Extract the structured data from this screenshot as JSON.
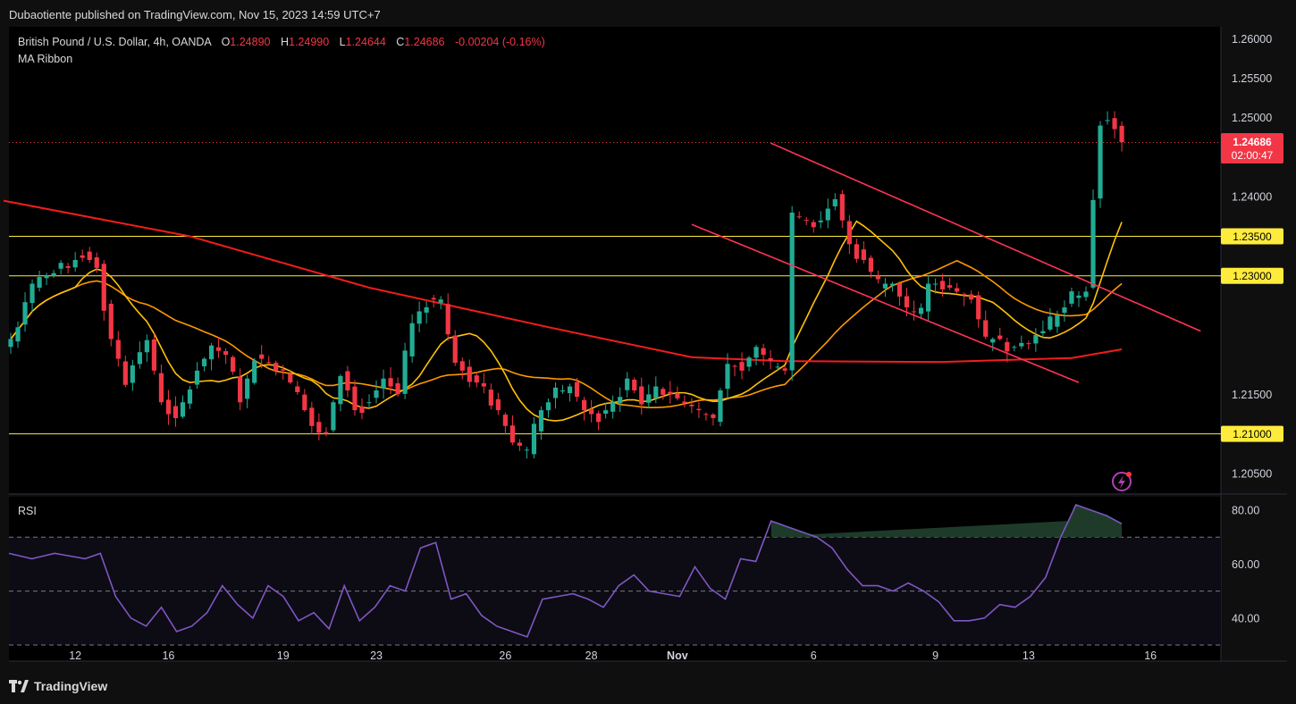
{
  "header": {
    "publisher": "Dubaotiente published on TradingView.com, Nov 15, 2023 14:59 UTC+7"
  },
  "legend": {
    "symbol": "British Pound / U.S. Dollar, 4h, OANDA",
    "open_label": "O",
    "open": "1.24890",
    "high_label": "H",
    "high": "1.24990",
    "low_label": "L",
    "low": "1.24644",
    "close_label": "C",
    "close": "1.24686",
    "change": "-0.00204 (-0.16%)",
    "indicator": "MA Ribbon"
  },
  "rsi_label": "RSI",
  "price_tag": {
    "price": "1.24686",
    "countdown": "02:00:47",
    "color": "#f23645"
  },
  "footer": {
    "brand": "TradingView"
  },
  "colors": {
    "up": "#22ab94",
    "down": "#f23645",
    "ma_fast": "#ffc107",
    "ma_mid": "#ff9800",
    "ma_slow": "#f21d1d",
    "rsi": "#7e57c2",
    "level": "#ffeb3b",
    "trend": "#ff3355"
  },
  "chart_data": {
    "type": "candlestick",
    "y_axis": {
      "ticks": [
        "1.26000",
        "1.25500",
        "1.25000",
        "1.24000",
        "1.21500",
        "1.20500"
      ],
      "range": [
        1.2025,
        1.2615
      ]
    },
    "x_axis": {
      "ticks": [
        {
          "label": "12",
          "i": 9
        },
        {
          "label": "16",
          "i": 22
        },
        {
          "label": "19",
          "i": 38
        },
        {
          "label": "23",
          "i": 51
        },
        {
          "label": "26",
          "i": 69
        },
        {
          "label": "28",
          "i": 81
        },
        {
          "label": "Nov",
          "i": 93
        },
        {
          "label": "6",
          "i": 112
        },
        {
          "label": "9",
          "i": 129
        },
        {
          "label": "13",
          "i": 142
        },
        {
          "label": "16",
          "i": 159
        }
      ]
    },
    "levels": [
      {
        "price": 1.235,
        "label": "1.23500"
      },
      {
        "price": 1.23,
        "label": "1.23000"
      },
      {
        "price": 1.21,
        "label": "1.21000"
      }
    ],
    "trendlines": [
      {
        "from": [
          106,
          1.2468
        ],
        "to": [
          166,
          1.223
        ]
      },
      {
        "from": [
          95,
          1.2365
        ],
        "to": [
          149,
          1.2165
        ]
      }
    ],
    "keypoints": [
      [
        0,
        1.222
      ],
      [
        3,
        1.229
      ],
      [
        5,
        1.23
      ],
      [
        8,
        1.231
      ],
      [
        10,
        1.233
      ],
      [
        12,
        1.231
      ],
      [
        14,
        1.222
      ],
      [
        16,
        1.217
      ],
      [
        19,
        1.222
      ],
      [
        21,
        1.214
      ],
      [
        23,
        1.212
      ],
      [
        26,
        1.218
      ],
      [
        28,
        1.221
      ],
      [
        30,
        1.22
      ],
      [
        32,
        1.214
      ],
      [
        34,
        1.22
      ],
      [
        36,
        1.219
      ],
      [
        38,
        1.218
      ],
      [
        40,
        1.215
      ],
      [
        42,
        1.211
      ],
      [
        44,
        1.21
      ],
      [
        46,
        1.218
      ],
      [
        48,
        1.213
      ],
      [
        50,
        1.214
      ],
      [
        52,
        1.217
      ],
      [
        54,
        1.215
      ],
      [
        56,
        1.224
      ],
      [
        58,
        1.227
      ],
      [
        60,
        1.227
      ],
      [
        62,
        1.219
      ],
      [
        64,
        1.217
      ],
      [
        66,
        1.216
      ],
      [
        68,
        1.213
      ],
      [
        70,
        1.209
      ],
      [
        72,
        1.208
      ],
      [
        74,
        1.213
      ],
      [
        76,
        1.215
      ],
      [
        78,
        1.216
      ],
      [
        80,
        1.213
      ],
      [
        82,
        1.212
      ],
      [
        84,
        1.214
      ],
      [
        86,
        1.217
      ],
      [
        88,
        1.214
      ],
      [
        90,
        1.216
      ],
      [
        92,
        1.215
      ],
      [
        94,
        1.214
      ],
      [
        96,
        1.213
      ],
      [
        98,
        1.212
      ],
      [
        100,
        1.219
      ],
      [
        102,
        1.218
      ],
      [
        104,
        1.221
      ],
      [
        106,
        1.219
      ],
      [
        108,
        1.218
      ],
      [
        109,
        1.238
      ],
      [
        111,
        1.237
      ],
      [
        113,
        1.237
      ],
      [
        115,
        1.24
      ],
      [
        117,
        1.234
      ],
      [
        119,
        1.232
      ],
      [
        121,
        1.229
      ],
      [
        123,
        1.229
      ],
      [
        125,
        1.226
      ],
      [
        127,
        1.225
      ],
      [
        128,
        1.229
      ],
      [
        130,
        1.229
      ],
      [
        132,
        1.228
      ],
      [
        134,
        1.227
      ],
      [
        136,
        1.222
      ],
      [
        138,
        1.222
      ],
      [
        140,
        1.221
      ],
      [
        142,
        1.222
      ],
      [
        144,
        1.223
      ],
      [
        146,
        1.225
      ],
      [
        148,
        1.227
      ],
      [
        150,
        1.228
      ],
      [
        151,
        1.24
      ],
      [
        152,
        1.249
      ],
      [
        153,
        1.2497
      ],
      [
        154,
        1.2489
      ],
      [
        155,
        1.2469
      ]
    ],
    "rsi": {
      "ticks": [
        "80.00",
        "60.00",
        "40.00"
      ],
      "bands": [
        70,
        30
      ],
      "mid": 50,
      "range": [
        28,
        85
      ],
      "keypoints": [
        [
          0,
          64
        ],
        [
          3,
          62
        ],
        [
          6,
          64
        ],
        [
          8,
          63
        ],
        [
          10,
          62
        ],
        [
          12,
          64
        ],
        [
          14,
          48
        ],
        [
          16,
          40
        ],
        [
          18,
          37
        ],
        [
          20,
          44
        ],
        [
          22,
          35
        ],
        [
          24,
          37
        ],
        [
          26,
          42
        ],
        [
          28,
          52
        ],
        [
          30,
          45
        ],
        [
          32,
          40
        ],
        [
          34,
          52
        ],
        [
          36,
          48
        ],
        [
          38,
          39
        ],
        [
          40,
          42
        ],
        [
          42,
          36
        ],
        [
          44,
          52
        ],
        [
          46,
          39
        ],
        [
          48,
          44
        ],
        [
          50,
          52
        ],
        [
          52,
          50
        ],
        [
          54,
          66
        ],
        [
          56,
          68
        ],
        [
          58,
          47
        ],
        [
          60,
          49
        ],
        [
          62,
          41
        ],
        [
          64,
          37
        ],
        [
          66,
          35
        ],
        [
          68,
          33
        ],
        [
          70,
          47
        ],
        [
          72,
          48
        ],
        [
          74,
          49
        ],
        [
          76,
          47
        ],
        [
          78,
          44
        ],
        [
          80,
          52
        ],
        [
          82,
          56
        ],
        [
          84,
          50
        ],
        [
          86,
          49
        ],
        [
          88,
          48
        ],
        [
          90,
          59
        ],
        [
          92,
          51
        ],
        [
          94,
          47
        ],
        [
          96,
          62
        ],
        [
          98,
          61
        ],
        [
          100,
          76
        ],
        [
          102,
          74
        ],
        [
          104,
          72
        ],
        [
          106,
          70
        ],
        [
          108,
          66
        ],
        [
          110,
          58
        ],
        [
          112,
          52
        ],
        [
          114,
          52
        ],
        [
          116,
          50
        ],
        [
          118,
          53
        ],
        [
          120,
          50
        ],
        [
          122,
          46
        ],
        [
          124,
          39
        ],
        [
          126,
          39
        ],
        [
          128,
          40
        ],
        [
          130,
          45
        ],
        [
          132,
          44
        ],
        [
          134,
          48
        ],
        [
          136,
          55
        ],
        [
          138,
          70
        ],
        [
          140,
          82
        ],
        [
          142,
          80
        ],
        [
          144,
          78
        ],
        [
          146,
          75
        ]
      ]
    }
  }
}
